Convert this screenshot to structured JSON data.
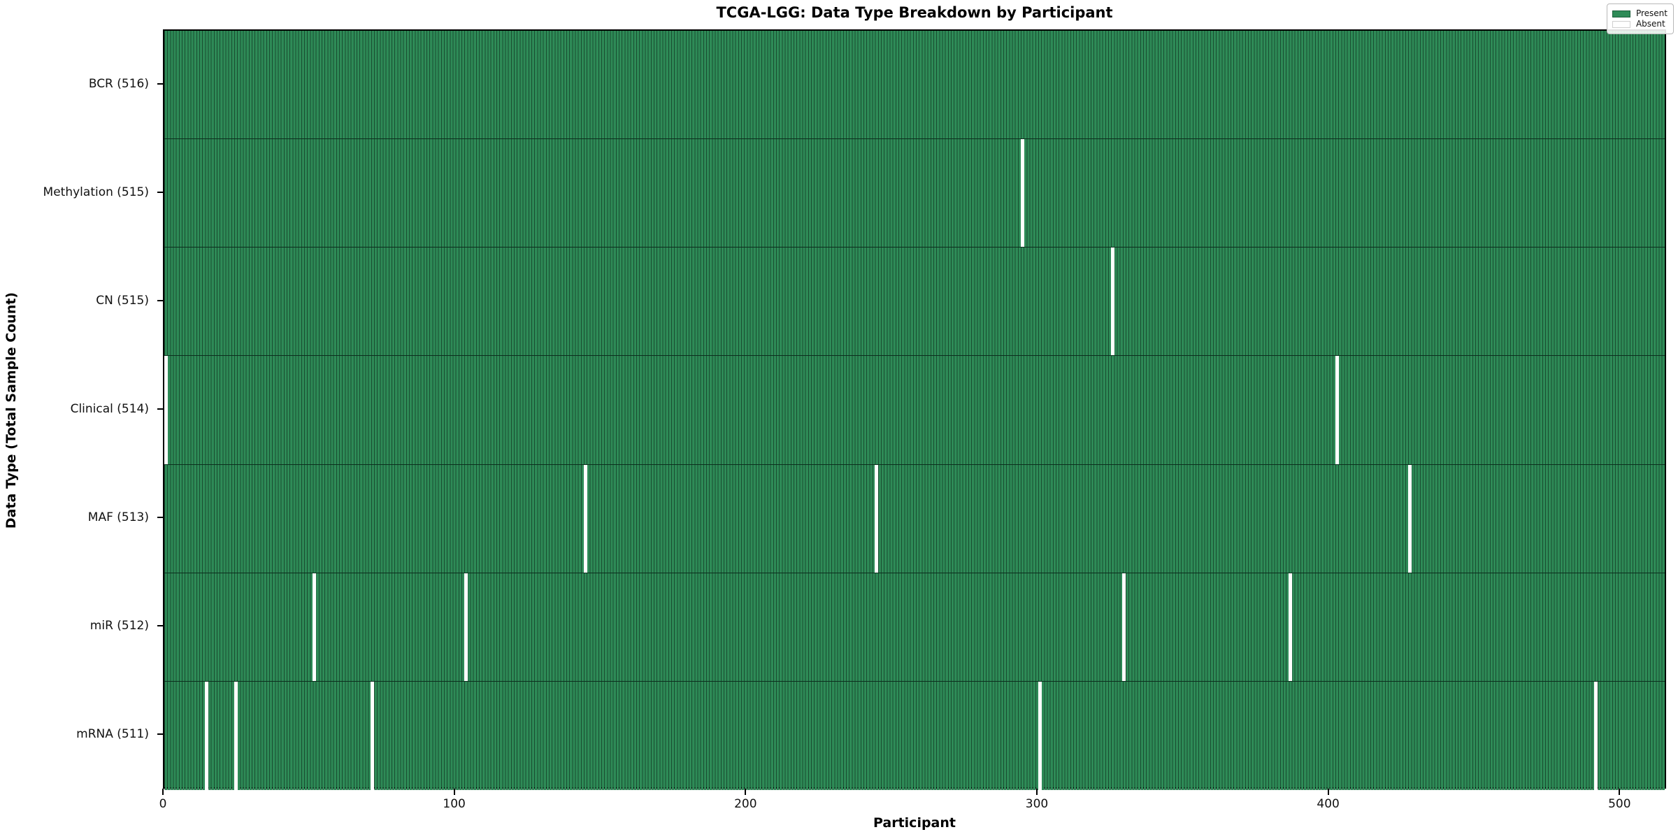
{
  "figure": {
    "title": "TCGA-LGG: Data Type Breakdown by Participant",
    "xlabel": "Participant",
    "ylabel": "Data Type (Total Sample Count)"
  },
  "legend": {
    "items": [
      {
        "label": "Present",
        "color": "#2e8b57"
      },
      {
        "label": "Absent",
        "color": "#ffffff"
      }
    ]
  },
  "chart_data": {
    "type": "heatmap",
    "title": "TCGA-LGG: Data Type Breakdown by Participant",
    "xlabel": "Participant",
    "ylabel": "Data Type (Total Sample Count)",
    "legend_position": "upper right",
    "legend_entries": [
      "Present",
      "Absent"
    ],
    "present_color": "#2e8b57",
    "absent_color": "#ffffff",
    "cell_edge_color": "rgba(0,0,0,0.45)",
    "n_participants": 516,
    "xlim": [
      0,
      516
    ],
    "x_ticks": [
      0,
      100,
      200,
      300,
      400,
      500
    ],
    "grid": false,
    "rows": [
      {
        "label": "BCR (516)",
        "data_type": "BCR",
        "total_samples": 516,
        "absent_participants": []
      },
      {
        "label": "Methylation (515)",
        "data_type": "Methylation",
        "total_samples": 515,
        "absent_participants": [
          294
        ]
      },
      {
        "label": "CN (515)",
        "data_type": "CN",
        "total_samples": 515,
        "absent_participants": [
          325
        ]
      },
      {
        "label": "Clinical (514)",
        "data_type": "Clinical",
        "total_samples": 514,
        "absent_participants": [
          0,
          402
        ]
      },
      {
        "label": "MAF (513)",
        "data_type": "MAF",
        "total_samples": 513,
        "absent_participants": [
          144,
          244,
          427
        ]
      },
      {
        "label": "miR (512)",
        "data_type": "miR",
        "total_samples": 512,
        "absent_participants": [
          51,
          103,
          329,
          386
        ]
      },
      {
        "label": "mRNA (511)",
        "data_type": "mRNA",
        "total_samples": 511,
        "absent_participants": [
          14,
          24,
          71,
          300,
          491
        ]
      }
    ]
  }
}
